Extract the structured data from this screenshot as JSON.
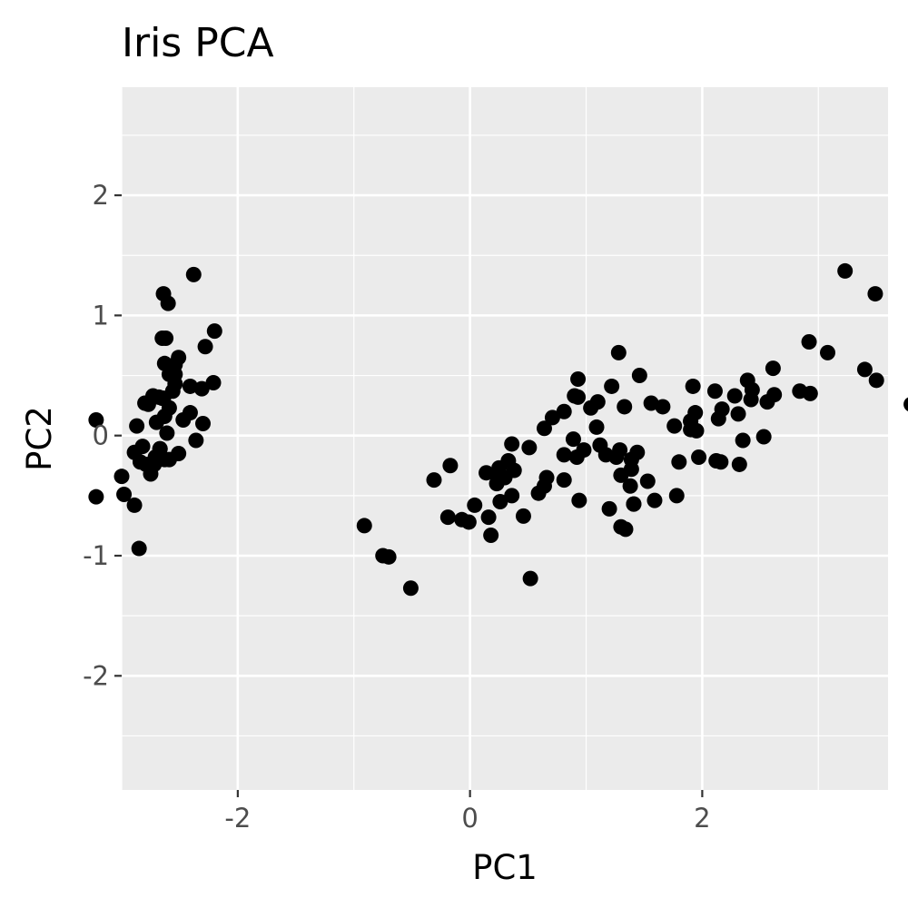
{
  "chart_data": {
    "type": "scatter",
    "title": "Iris PCA",
    "xlabel": "PC1",
    "ylabel": "PC2",
    "xlim": [
      -3.0,
      3.6
    ],
    "ylim": [
      -2.95,
      2.9
    ],
    "x_ticks": [
      -2,
      0,
      2
    ],
    "y_ticks": [
      2,
      1,
      0,
      -1,
      -2
    ],
    "x_tick_labels": [
      "-2",
      "0",
      "2"
    ],
    "y_tick_labels": [
      "2",
      "1",
      "0",
      "-1",
      "-2"
    ],
    "grid": true,
    "legend": "none",
    "colors": {
      "panel_background": "#ebebeb",
      "grid": "#ffffff",
      "point": "#000000",
      "tick_label": "#4d4d4d"
    },
    "points": [
      [
        -2.68,
        0.32
      ],
      [
        -2.71,
        -0.18
      ],
      [
        -2.89,
        -0.14
      ],
      [
        -2.75,
        -0.32
      ],
      [
        -2.73,
        0.33
      ],
      [
        -2.28,
        0.74
      ],
      [
        -2.82,
        -0.09
      ],
      [
        -2.63,
        0.16
      ],
      [
        -2.89,
        -0.58
      ],
      [
        -2.67,
        -0.11
      ],
      [
        -2.51,
        0.65
      ],
      [
        -2.61,
        0.02
      ],
      [
        -2.79,
        -0.24
      ],
      [
        -3.22,
        -0.51
      ],
      [
        -2.64,
        1.18
      ],
      [
        -2.38,
        1.34
      ],
      [
        -2.62,
        0.81
      ],
      [
        -2.65,
        0.31
      ],
      [
        -2.2,
        0.87
      ],
      [
        -2.59,
        0.51
      ],
      [
        -2.31,
        0.39
      ],
      [
        -2.54,
        0.43
      ],
      [
        -3.22,
        0.13
      ],
      [
        -2.3,
        0.1
      ],
      [
        -2.36,
        -0.04
      ],
      [
        -2.51,
        -0.15
      ],
      [
        -2.47,
        0.13
      ],
      [
        -2.56,
        0.37
      ],
      [
        -2.64,
        0.31
      ],
      [
        -2.63,
        -0.2
      ],
      [
        -2.59,
        -0.2
      ],
      [
        -2.41,
        0.41
      ],
      [
        -2.65,
        0.81
      ],
      [
        -2.6,
        1.1
      ],
      [
        -2.67,
        -0.11
      ],
      [
        -2.87,
        0.08
      ],
      [
        -2.63,
        0.6
      ],
      [
        -2.8,
        0.27
      ],
      [
        -2.98,
        -0.49
      ],
      [
        -2.59,
        0.23
      ],
      [
        -2.77,
        0.26
      ],
      [
        -2.85,
        -0.94
      ],
      [
        -3.0,
        -0.34
      ],
      [
        -2.41,
        0.19
      ],
      [
        -2.21,
        0.44
      ],
      [
        -2.72,
        -0.24
      ],
      [
        -2.54,
        0.51
      ],
      [
        -2.84,
        -0.22
      ],
      [
        -2.54,
        0.59
      ],
      [
        -2.7,
        0.11
      ],
      [
        1.28,
        0.69
      ],
      [
        0.93,
        0.32
      ],
      [
        1.46,
        0.5
      ],
      [
        0.18,
        -0.83
      ],
      [
        1.09,
        0.07
      ],
      [
        0.64,
        -0.42
      ],
      [
        1.1,
        0.28
      ],
      [
        -0.75,
        -1.0
      ],
      [
        1.04,
        0.23
      ],
      [
        -0.01,
        -0.72
      ],
      [
        -0.51,
        -1.27
      ],
      [
        0.51,
        -0.1
      ],
      [
        0.26,
        -0.55
      ],
      [
        0.98,
        -0.12
      ],
      [
        -0.17,
        -0.25
      ],
      [
        0.93,
        0.47
      ],
      [
        0.66,
        -0.35
      ],
      [
        0.23,
        -0.33
      ],
      [
        0.94,
        -0.54
      ],
      [
        0.04,
        -0.58
      ],
      [
        1.12,
        -0.08
      ],
      [
        0.36,
        -0.07
      ],
      [
        1.3,
        -0.33
      ],
      [
        0.92,
        -0.18
      ],
      [
        0.71,
        0.15
      ],
      [
        0.9,
        0.33
      ],
      [
        1.33,
        0.24
      ],
      [
        1.56,
        0.27
      ],
      [
        0.81,
        -0.16
      ],
      [
        -0.31,
        -0.37
      ],
      [
        -0.07,
        -0.7
      ],
      [
        -0.19,
        -0.68
      ],
      [
        0.14,
        -0.31
      ],
      [
        1.38,
        -0.42
      ],
      [
        0.59,
        -0.48
      ],
      [
        0.81,
        0.2
      ],
      [
        1.22,
        0.41
      ],
      [
        0.81,
        -0.37
      ],
      [
        0.25,
        -0.27
      ],
      [
        0.16,
        -0.68
      ],
      [
        0.46,
        -0.67
      ],
      [
        0.89,
        -0.03
      ],
      [
        0.23,
        -0.4
      ],
      [
        -0.7,
        -1.01
      ],
      [
        0.36,
        -0.5
      ],
      [
        0.33,
        -0.21
      ],
      [
        0.38,
        -0.29
      ],
      [
        0.64,
        0.06
      ],
      [
        -0.91,
        -0.75
      ],
      [
        0.3,
        -0.35
      ],
      [
        2.53,
        -0.01
      ],
      [
        1.41,
        -0.57
      ],
      [
        2.62,
        0.34
      ],
      [
        1.97,
        -0.18
      ],
      [
        2.35,
        -0.04
      ],
      [
        3.4,
        0.55
      ],
      [
        0.52,
        -1.19
      ],
      [
        2.93,
        0.35
      ],
      [
        2.32,
        -0.24
      ],
      [
        2.92,
        0.78
      ],
      [
        1.66,
        0.24
      ],
      [
        1.8,
        -0.22
      ],
      [
        2.17,
        0.22
      ],
      [
        1.34,
        -0.78
      ],
      [
        1.59,
        -0.54
      ],
      [
        1.9,
        0.12
      ],
      [
        1.95,
        0.04
      ],
      [
        3.49,
        1.18
      ],
      [
        3.8,
        0.26
      ],
      [
        1.3,
        -0.76
      ],
      [
        2.43,
        0.38
      ],
      [
        1.2,
        -0.61
      ],
      [
        3.5,
        0.46
      ],
      [
        1.39,
        -0.2
      ],
      [
        2.28,
        0.33
      ],
      [
        2.61,
        0.56
      ],
      [
        1.26,
        -0.18
      ],
      [
        1.29,
        -0.12
      ],
      [
        2.12,
        -0.21
      ],
      [
        2.39,
        0.46
      ],
      [
        2.84,
        0.37
      ],
      [
        3.23,
        1.37
      ],
      [
        2.16,
        -0.22
      ],
      [
        1.44,
        -0.14
      ],
      [
        1.78,
        -0.5
      ],
      [
        3.08,
        0.69
      ],
      [
        2.14,
        0.14
      ],
      [
        1.9,
        0.05
      ],
      [
        1.17,
        -0.16
      ],
      [
        2.11,
        0.37
      ],
      [
        2.31,
        0.18
      ],
      [
        1.92,
        0.41
      ],
      [
        1.41,
        -0.57
      ],
      [
        2.56,
        0.28
      ],
      [
        2.42,
        0.3
      ],
      [
        1.94,
        0.19
      ],
      [
        1.53,
        -0.38
      ],
      [
        1.76,
        0.08
      ],
      [
        1.9,
        0.12
      ],
      [
        1.39,
        -0.28
      ]
    ]
  }
}
